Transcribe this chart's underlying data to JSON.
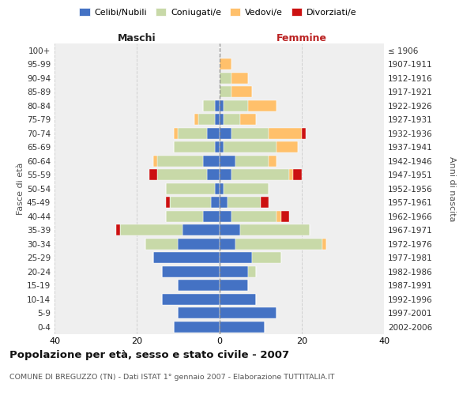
{
  "age_groups": [
    "0-4",
    "5-9",
    "10-14",
    "15-19",
    "20-24",
    "25-29",
    "30-34",
    "35-39",
    "40-44",
    "45-49",
    "50-54",
    "55-59",
    "60-64",
    "65-69",
    "70-74",
    "75-79",
    "80-84",
    "85-89",
    "90-94",
    "95-99",
    "100+"
  ],
  "birth_years": [
    "2002-2006",
    "1997-2001",
    "1992-1996",
    "1987-1991",
    "1982-1986",
    "1977-1981",
    "1972-1976",
    "1967-1971",
    "1962-1966",
    "1957-1961",
    "1952-1956",
    "1947-1951",
    "1942-1946",
    "1937-1941",
    "1932-1936",
    "1927-1931",
    "1922-1926",
    "1917-1921",
    "1912-1916",
    "1907-1911",
    "≤ 1906"
  ],
  "maschi": {
    "celibi": [
      11,
      10,
      14,
      10,
      14,
      16,
      10,
      9,
      4,
      2,
      1,
      3,
      4,
      1,
      3,
      1,
      1,
      0,
      0,
      0,
      0
    ],
    "coniugati": [
      0,
      0,
      0,
      0,
      0,
      0,
      8,
      15,
      9,
      10,
      12,
      12,
      11,
      10,
      7,
      4,
      3,
      0,
      0,
      0,
      0
    ],
    "vedovi": [
      0,
      0,
      0,
      0,
      0,
      0,
      0,
      0,
      0,
      0,
      0,
      0,
      1,
      0,
      1,
      1,
      0,
      0,
      0,
      0,
      0
    ],
    "divorziati": [
      0,
      0,
      0,
      0,
      0,
      0,
      0,
      1,
      0,
      1,
      0,
      2,
      0,
      0,
      0,
      0,
      0,
      0,
      0,
      0,
      0
    ]
  },
  "femmine": {
    "celibi": [
      11,
      14,
      9,
      7,
      7,
      8,
      4,
      5,
      3,
      2,
      1,
      3,
      4,
      1,
      3,
      1,
      1,
      0,
      0,
      0,
      0
    ],
    "coniugati": [
      0,
      0,
      0,
      0,
      2,
      7,
      21,
      17,
      11,
      8,
      11,
      14,
      8,
      13,
      9,
      4,
      6,
      3,
      3,
      0,
      0
    ],
    "vedovi": [
      0,
      0,
      0,
      0,
      0,
      0,
      1,
      0,
      1,
      0,
      0,
      1,
      2,
      5,
      8,
      4,
      7,
      5,
      4,
      3,
      0
    ],
    "divorziati": [
      0,
      0,
      0,
      0,
      0,
      0,
      0,
      0,
      2,
      2,
      0,
      2,
      0,
      0,
      1,
      0,
      0,
      0,
      0,
      0,
      0
    ]
  },
  "colors": {
    "celibi": "#4472c4",
    "coniugati": "#c8d9a8",
    "vedovi": "#ffc06b",
    "divorziati": "#cc1111"
  },
  "xlim": 40,
  "title": "Popolazione per età, sesso e stato civile - 2007",
  "subtitle": "COMUNE DI BREGUZZO (TN) - Dati ISTAT 1° gennaio 2007 - Elaborazione TUTTITALIA.IT",
  "ylabel_left": "Fasce di età",
  "ylabel_right": "Anni di nascita",
  "xlabel_left": "Maschi",
  "xlabel_right": "Femmine",
  "legend_labels": [
    "Celibi/Nubili",
    "Coniugati/e",
    "Vedovi/e",
    "Divorziati/e"
  ],
  "bg_color": "#efefef",
  "grid_color": "#cccccc"
}
